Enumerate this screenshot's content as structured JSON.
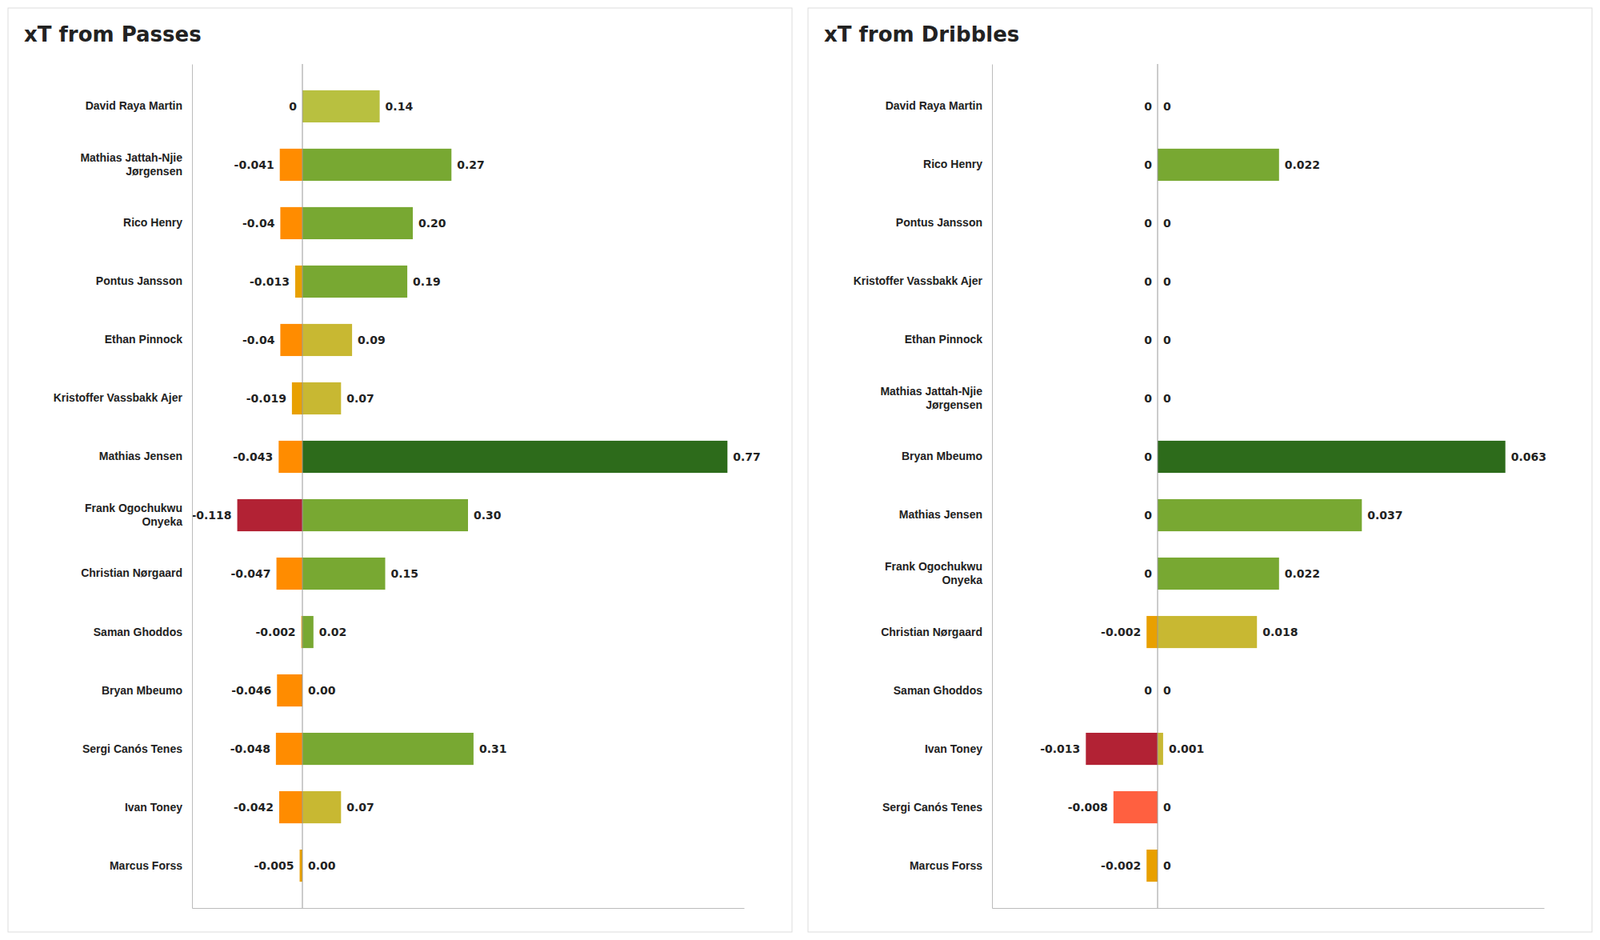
{
  "chart_data": [
    {
      "type": "bar",
      "orientation": "horizontal",
      "stacked": true,
      "data_labels": true,
      "grid": false,
      "tick_labels": "y",
      "title": "xT from Passes",
      "categories": [
        "David Raya Martin",
        "Mathias Jattah-Njie\nJørgensen",
        "Rico Henry",
        "Pontus Jansson",
        "Ethan Pinnock",
        "Kristoffer Vassbakk Ajer",
        "Mathias Jensen",
        "Frank Ogochukwu\nOnyeka",
        "Christian Nørgaard",
        "Saman Ghoddos",
        "Bryan Mbeumo",
        "Sergi Canós Tenes",
        "Ivan Toney",
        "Marcus Forss"
      ],
      "xlim": [
        -0.2,
        0.8
      ],
      "series": [
        {
          "values": [
            0,
            -0.041,
            -0.04,
            -0.013,
            -0.04,
            -0.019,
            -0.043,
            -0.118,
            -0.047,
            -0.002,
            -0.046,
            -0.048,
            -0.042,
            -0.005
          ],
          "colors": [
            "#C8B400",
            "#FF8C00",
            "#FF8C00",
            "#E8A000",
            "#FF8C00",
            "#E8A000",
            "#FF8C00",
            "#B22234",
            "#FF8C00",
            "#E8A000",
            "#FF8C00",
            "#FF8C00",
            "#FF8C00",
            "#E8A000"
          ]
        },
        {
          "values": [
            0.14,
            0.27,
            0.2,
            0.19,
            0.09,
            0.07,
            0.77,
            0.3,
            0.15,
            0.02,
            0.0,
            0.31,
            0.07,
            0.0
          ],
          "value_labels": [
            "0.14",
            "0.27",
            "0.20",
            "0.19",
            "0.09",
            "0.07",
            "0.77",
            "0.30",
            "0.15",
            "0.02",
            "0.00",
            "0.31",
            "0.07",
            "0.00"
          ],
          "colors": [
            "#B8C040",
            "#78A832",
            "#78A832",
            "#78A832",
            "#C8B832",
            "#C8B832",
            "#2D6B1B",
            "#78A832",
            "#78A832",
            "#78A832",
            "#78A832",
            "#78A832",
            "#C8B832",
            "#78A832"
          ]
        }
      ]
    },
    {
      "type": "bar",
      "orientation": "horizontal",
      "stacked": true,
      "data_labels": true,
      "grid": false,
      "tick_labels": "y",
      "title": "xT from Dribbles",
      "categories": [
        "David Raya Martin",
        "Rico Henry",
        "Pontus Jansson",
        "Kristoffer Vassbakk Ajer",
        "Ethan Pinnock",
        "Mathias Jattah-Njie\nJørgensen",
        "Bryan Mbeumo",
        "Mathias Jensen",
        "Frank Ogochukwu\nOnyeka",
        "Christian Nørgaard",
        "Saman Ghoddos",
        "Ivan Toney",
        "Sergi Canós Tenes",
        "Marcus Forss"
      ],
      "xlim": [
        -0.03,
        0.07
      ],
      "series": [
        {
          "values": [
            0,
            0,
            0,
            0,
            0,
            0,
            0,
            0,
            0,
            -0.002,
            0,
            -0.013,
            -0.008,
            -0.002
          ],
          "colors": [
            "#E8A000",
            "#E8A000",
            "#E8A000",
            "#E8A000",
            "#E8A000",
            "#E8A000",
            "#E8A000",
            "#E8A000",
            "#E8A000",
            "#E8A000",
            "#E8A000",
            "#B22234",
            "#FF6040",
            "#E8A000"
          ]
        },
        {
          "values": [
            0,
            0.022,
            0,
            0,
            0,
            0,
            0.063,
            0.037,
            0.022,
            0.018,
            0,
            0.001,
            0,
            0
          ],
          "colors": [
            "#78A832",
            "#78A832",
            "#78A832",
            "#78A832",
            "#78A832",
            "#78A832",
            "#2D6B1B",
            "#78A832",
            "#78A832",
            "#C8B832",
            "#78A832",
            "#C8B832",
            "#78A832",
            "#78A832"
          ]
        }
      ]
    }
  ]
}
